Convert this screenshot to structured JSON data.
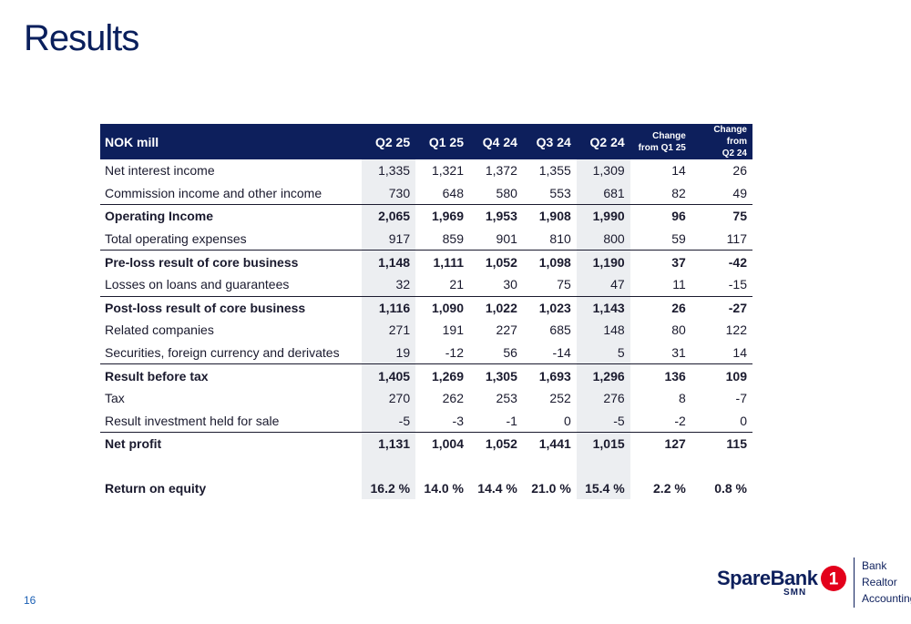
{
  "title": "Results",
  "page_number": "16",
  "table": {
    "header": {
      "label": "NOK mill",
      "q2_25": "Q2 25",
      "q1_25": "Q1 25",
      "q4_24": "Q4 24",
      "q3_24": "Q3 24",
      "q2_24": "Q2 24",
      "chg_q1_line1": "Change",
      "chg_q1_line2": "from Q1 25",
      "chg_q2_line1": "Change from",
      "chg_q2_line2": "Q2 24"
    },
    "rows": [
      {
        "label": "Net interest income",
        "q2_25": "1,335",
        "q1_25": "1,321",
        "q4_24": "1,372",
        "q3_24": "1,355",
        "q2_24": "1,309",
        "chg_q1": "14",
        "chg_q2": "26"
      },
      {
        "label": "Commission income and other income",
        "q2_25": "730",
        "q1_25": "648",
        "q4_24": "580",
        "q3_24": "553",
        "q2_24": "681",
        "chg_q1": "82",
        "chg_q2": "49"
      },
      {
        "label": "Operating Income",
        "q2_25": "2,065",
        "q1_25": "1,969",
        "q4_24": "1,953",
        "q3_24": "1,908",
        "q2_24": "1,990",
        "chg_q1": "96",
        "chg_q2": "75"
      },
      {
        "label": "Total operating expenses",
        "q2_25": "917",
        "q1_25": "859",
        "q4_24": "901",
        "q3_24": "810",
        "q2_24": "800",
        "chg_q1": "59",
        "chg_q2": "117"
      },
      {
        "label": "Pre-loss result of core business",
        "q2_25": "1,148",
        "q1_25": "1,111",
        "q4_24": "1,052",
        "q3_24": "1,098",
        "q2_24": "1,190",
        "chg_q1": "37",
        "chg_q2": "-42"
      },
      {
        "label": "Losses on loans and guarantees",
        "q2_25": "32",
        "q1_25": "21",
        "q4_24": "30",
        "q3_24": "75",
        "q2_24": "47",
        "chg_q1": "11",
        "chg_q2": "-15"
      },
      {
        "label": "Post-loss result of core business",
        "q2_25": "1,116",
        "q1_25": "1,090",
        "q4_24": "1,022",
        "q3_24": "1,023",
        "q2_24": "1,143",
        "chg_q1": "26",
        "chg_q2": "-27"
      },
      {
        "label": "Related companies",
        "q2_25": "271",
        "q1_25": "191",
        "q4_24": "227",
        "q3_24": "685",
        "q2_24": "148",
        "chg_q1": "80",
        "chg_q2": "122"
      },
      {
        "label": "Securities, foreign currency and derivates",
        "q2_25": "19",
        "q1_25": "-12",
        "q4_24": "56",
        "q3_24": "-14",
        "q2_24": "5",
        "chg_q1": "31",
        "chg_q2": "14"
      },
      {
        "label": "Result before tax",
        "q2_25": "1,405",
        "q1_25": "1,269",
        "q4_24": "1,305",
        "q3_24": "1,693",
        "q2_24": "1,296",
        "chg_q1": "136",
        "chg_q2": "109"
      },
      {
        "label": "Tax",
        "q2_25": "270",
        "q1_25": "262",
        "q4_24": "253",
        "q3_24": "252",
        "q2_24": "276",
        "chg_q1": "8",
        "chg_q2": "-7"
      },
      {
        "label": "Result investment held for sale",
        "q2_25": "-5",
        "q1_25": "-3",
        "q4_24": "-1",
        "q3_24": "0",
        "q2_24": "-5",
        "chg_q1": "-2",
        "chg_q2": "0"
      },
      {
        "label": "Net profit",
        "q2_25": "1,131",
        "q1_25": "1,004",
        "q4_24": "1,052",
        "q3_24": "1,441",
        "q2_24": "1,015",
        "chg_q1": "127",
        "chg_q2": "115"
      },
      {
        "label": "Return on equity",
        "q2_25": "16.2 %",
        "q1_25": "14.0 %",
        "q4_24": "14.4 %",
        "q3_24": "21.0 %",
        "q2_24": "15.4 %",
        "chg_q1": "2.2 %",
        "chg_q2": "0.8 %"
      }
    ]
  },
  "logo": {
    "wordmark": "SpareBank",
    "number": "1",
    "sub": "SMN",
    "line1": "Bank",
    "line2": "Realtor",
    "line3": "Accounting",
    "brand_color": "#0d1f5c",
    "accent_color": "#e3001b"
  }
}
